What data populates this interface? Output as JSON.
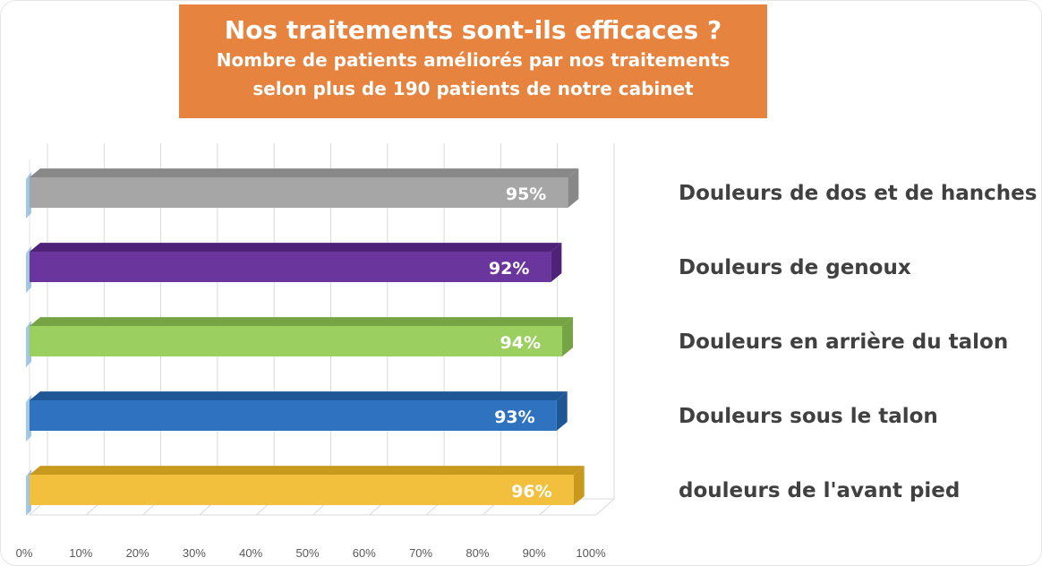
{
  "header": {
    "title": "Nos traitements sont-ils efficaces ?",
    "subtitle_line1": "Nombre de patients améliorés par nos traitements",
    "subtitle_line2": "selon plus de 190 patients de notre cabinet"
  },
  "chart_data": {
    "type": "bar",
    "orientation": "horizontal",
    "title": "Nos traitements sont-ils efficaces ?",
    "subtitle": "Nombre de patients améliorés par nos traitements selon plus de 190 patients de notre cabinet",
    "categories": [
      "Douleurs de dos et de hanches",
      "Douleurs de genoux",
      "Douleurs en arrière du talon",
      "Douleurs sous le talon",
      "douleurs de l'avant pied"
    ],
    "values": [
      95,
      92,
      94,
      93,
      96
    ],
    "value_labels": [
      "95%",
      "92%",
      "94%",
      "93%",
      "96%"
    ],
    "colors": [
      "#a6a6a6",
      "#6a359c",
      "#9bcf5f",
      "#2f73c0",
      "#f2c03c"
    ],
    "side_colors": [
      "#888888",
      "#4f2279",
      "#76a344",
      "#1f5695",
      "#c79a1e"
    ],
    "xlim": [
      0,
      100
    ],
    "x_ticks": [
      "0%",
      "10%",
      "20%",
      "30%",
      "40%",
      "50%",
      "60%",
      "70%",
      "80%",
      "90%",
      "100%"
    ],
    "grid": true,
    "legend": "category labels to the right of the bars"
  }
}
